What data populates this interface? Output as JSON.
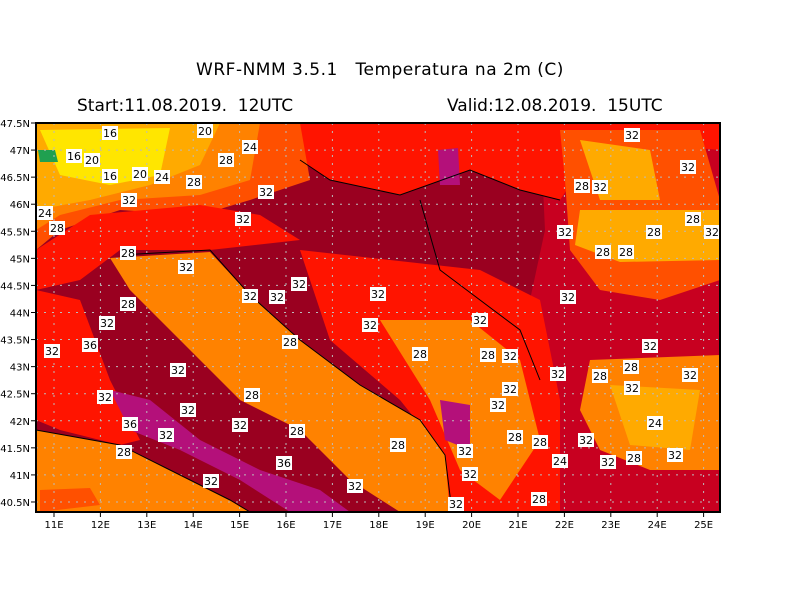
{
  "header": {
    "title": "WRF-NMM 3.5.1   Temperatura na 2m (C)",
    "start": "Start:11.08.2019.  12UTC",
    "valid": "Valid:12.08.2019.  15UTC"
  },
  "axes": {
    "lon_labels": [
      "11E",
      "12E",
      "13E",
      "14E",
      "15E",
      "16E",
      "17E",
      "18E",
      "19E",
      "20E",
      "21E",
      "22E",
      "23E",
      "24E",
      "25E"
    ],
    "lat_labels": [
      "47.5N",
      "47N",
      "46.5N",
      "46N",
      "45.5N",
      "45N",
      "44.5N",
      "44N",
      "43.5N",
      "43N",
      "42.5N",
      "42N",
      "41.5N",
      "41N",
      "40.5N"
    ]
  },
  "contour_labels": [
    "16",
    "20",
    "16",
    "20",
    "16",
    "20",
    "24",
    "24",
    "28",
    "28",
    "32",
    "24",
    "28",
    "32",
    "32",
    "28",
    "32",
    "32",
    "32",
    "32",
    "28",
    "32",
    "32",
    "36",
    "32",
    "32",
    "32",
    "28",
    "32",
    "32",
    "32",
    "36",
    "32",
    "28",
    "32",
    "32",
    "28",
    "32",
    "36",
    "28",
    "32",
    "32",
    "32",
    "28",
    "32",
    "28",
    "32",
    "32",
    "32",
    "28",
    "28",
    "28",
    "32",
    "28",
    "28",
    "24",
    "32",
    "32",
    "28",
    "24",
    "28",
    "32",
    "28",
    "32",
    "32",
    "28",
    "32",
    "28",
    "32",
    "32",
    "32",
    "32",
    "28",
    "32",
    "28"
  ],
  "colors": {
    "dark_red": "#9a0020",
    "red": "#c80020",
    "bright_red": "#ff1400",
    "orange_red": "#ff5000",
    "orange": "#ff8200",
    "light_orange": "#ffaa00",
    "yellow": "#ffe600",
    "magenta": "#b4107a",
    "green": "#20a050"
  }
}
